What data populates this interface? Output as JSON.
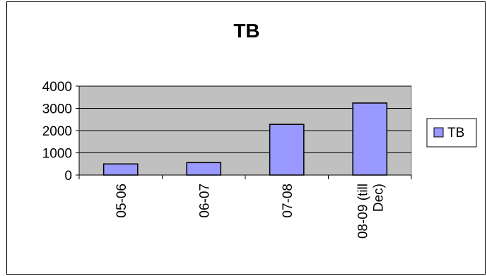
{
  "chart_data": {
    "type": "bar",
    "title": "TB",
    "xlabel": "",
    "ylabel": "",
    "categories": [
      "05-06",
      "06-07",
      "07-08",
      "08-09 (till Dec)"
    ],
    "category_lines": [
      [
        "05-06"
      ],
      [
        "06-07"
      ],
      [
        "07-08"
      ],
      [
        "08-09 (till",
        "Dec)"
      ]
    ],
    "series": [
      {
        "name": "TB",
        "values": [
          500,
          560,
          2280,
          3240
        ]
      }
    ],
    "ylim": [
      0,
      4000
    ],
    "yticks": [
      0,
      1000,
      2000,
      3000,
      4000
    ],
    "grid": true,
    "legend_position": "right",
    "colors": {
      "bar_fill": "#9999ff",
      "bar_stroke": "#000000",
      "plot_background": "#c0c0c0",
      "gridline": "#000000"
    }
  }
}
